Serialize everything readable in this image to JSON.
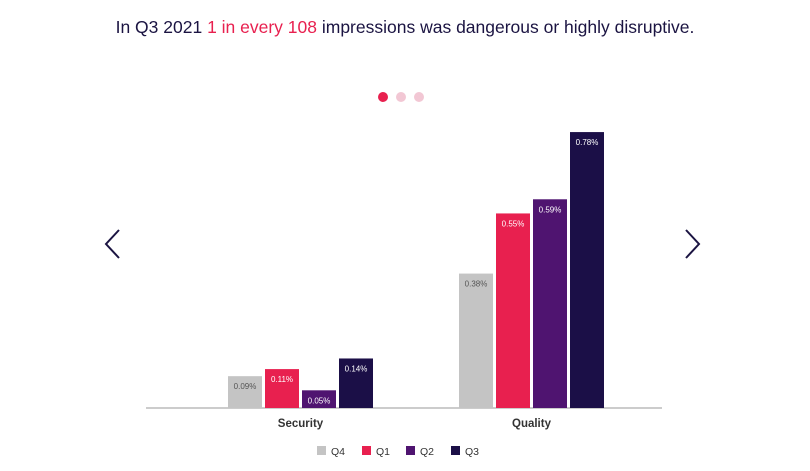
{
  "headline": {
    "prefix": "In Q3 2021 ",
    "highlight": "1 in every 108",
    "suffix": " impressions was dangerous or highly disruptive."
  },
  "carousel": {
    "slides": 3,
    "active": 0
  },
  "colors": {
    "Q4": "#c4c4c4",
    "Q1": "#e8204f",
    "Q2": "#4f1470",
    "Q3": "#1b0f47",
    "headline": "#1b1442",
    "accent": "#e8204f",
    "dot_inactive": "#f2c7d4"
  },
  "chart_data": {
    "type": "bar",
    "categories": [
      "Security",
      "Quality"
    ],
    "series": [
      {
        "name": "Q4",
        "values": [
          0.09,
          0.38
        ],
        "labels": [
          "0.09%",
          "0.38%"
        ]
      },
      {
        "name": "Q1",
        "values": [
          0.11,
          0.55
        ],
        "labels": [
          "0.11%",
          "0.55%"
        ]
      },
      {
        "name": "Q2",
        "values": [
          0.05,
          0.59
        ],
        "labels": [
          "0.05%",
          "0.59%"
        ]
      },
      {
        "name": "Q3",
        "values": [
          0.14,
          0.78
        ],
        "labels": [
          "0.14%",
          "0.78%"
        ]
      }
    ],
    "ylim": [
      0,
      0.8
    ],
    "legend_position": "bottom",
    "grid": false
  }
}
